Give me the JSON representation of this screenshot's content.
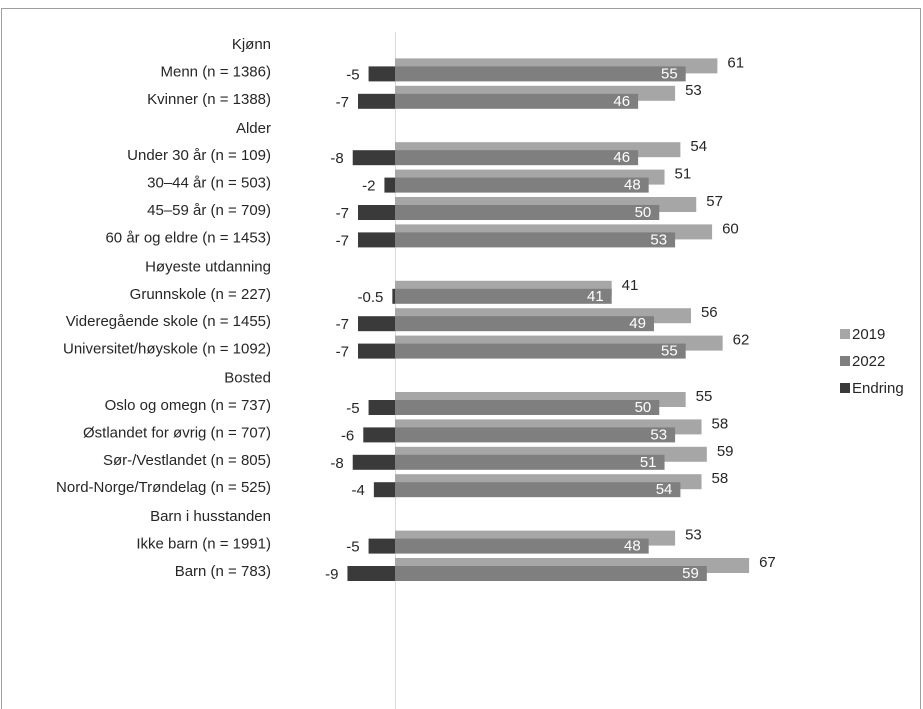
{
  "chart_data": {
    "type": "bar",
    "orientation": "horizontal",
    "grid": false,
    "legend_position": "right",
    "groups": [
      {
        "heading": "Kjønn",
        "categories": [
          {
            "label": "Menn (n = 1386)",
            "v2019": 61,
            "v2022": 55,
            "change": -5
          },
          {
            "label": "Kvinner (n = 1388)",
            "v2019": 53,
            "v2022": 46,
            "change": -7
          }
        ]
      },
      {
        "heading": "Alder",
        "categories": [
          {
            "label": "Under 30 år (n = 109)",
            "v2019": 54,
            "v2022": 46,
            "change": -8
          },
          {
            "label": "30–44 år (n = 503)",
            "v2019": 51,
            "v2022": 48,
            "change": -2
          },
          {
            "label": "45–59 år (n = 709)",
            "v2019": 57,
            "v2022": 50,
            "change": -7
          },
          {
            "label": "60 år og eldre (n = 1453)",
            "v2019": 60,
            "v2022": 53,
            "change": -7
          }
        ]
      },
      {
        "heading": "Høyeste utdanning",
        "categories": [
          {
            "label": "Grunnskole (n = 227)",
            "v2019": 41,
            "v2022": 41,
            "change": -0.5
          },
          {
            "label": "Videregående skole (n = 1455)",
            "v2019": 56,
            "v2022": 49,
            "change": -7
          },
          {
            "label": "Universitet/høyskole (n = 1092)",
            "v2019": 62,
            "v2022": 55,
            "change": -7
          }
        ]
      },
      {
        "heading": "Bosted",
        "categories": [
          {
            "label": "Oslo og omegn (n = 737)",
            "v2019": 55,
            "v2022": 50,
            "change": -5
          },
          {
            "label": "Østlandet for øvrig (n = 707)",
            "v2019": 58,
            "v2022": 53,
            "change": -6
          },
          {
            "label": "Sør-/Vestlandet (n = 805)",
            "v2019": 59,
            "v2022": 51,
            "change": -8
          },
          {
            "label": "Nord-Norge/Trøndelag (n = 525)",
            "v2019": 58,
            "v2022": 54,
            "change": -4
          }
        ]
      },
      {
        "heading": "Barn i husstanden",
        "categories": [
          {
            "label": "Ikke barn (n = 1991)",
            "v2019": 53,
            "v2022": 48,
            "change": -5
          },
          {
            "label": "Barn (n = 783)",
            "v2019": 67,
            "v2022": 59,
            "change": -9
          }
        ]
      }
    ],
    "series": [
      {
        "name": "2019",
        "key": "v2019",
        "color": "#a6a6a6"
      },
      {
        "name": "2022",
        "key": "v2022",
        "color": "#7f7f7f"
      },
      {
        "name": "Endring",
        "key": "change",
        "color": "#3a3a3a"
      }
    ]
  }
}
